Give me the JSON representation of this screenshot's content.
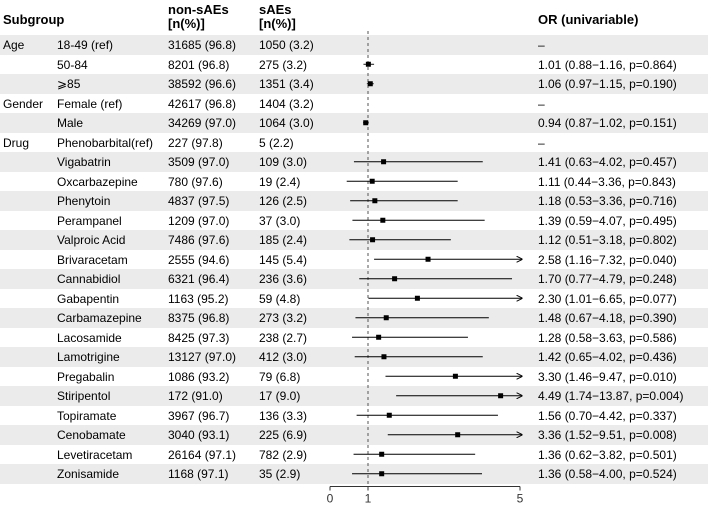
{
  "headers": {
    "subgroup": "Subgroup",
    "non_saes": "non-sAEs",
    "non_saes_unit": "[n(%)]",
    "saes": "sAEs",
    "saes_unit": "[n(%)]",
    "or": "OR (univariable)"
  },
  "rows": [
    {
      "group": "Age",
      "subgroup": "18-49 (ref)",
      "non_saes": "31685 (96.8)",
      "saes": "1050 (3.2)",
      "or_text": "–"
    },
    {
      "group": "",
      "subgroup": "50-84",
      "non_saes": "8201 (96.8)",
      "saes": "275 (3.2)",
      "or_text": "1.01 (0.88−1.16, p=0.864)"
    },
    {
      "group": "",
      "subgroup": "⩾85",
      "non_saes": "38592 (96.6)",
      "saes": "1351 (3.4)",
      "or_text": "1.06 (0.97−1.15, p=0.190)"
    },
    {
      "group": "Gender",
      "subgroup": "Female (ref)",
      "non_saes": "42617 (96.8)",
      "saes": "1404 (3.2)",
      "or_text": "–"
    },
    {
      "group": "",
      "subgroup": "Male",
      "non_saes": "34269 (97.0)",
      "saes": "1064 (3.0)",
      "or_text": "0.94 (0.87−1.02, p=0.151)"
    },
    {
      "group": "Drug",
      "subgroup": "Phenobarbital(ref)",
      "non_saes": "227 (97.8)",
      "saes": "5 (2.2)",
      "or_text": "–"
    },
    {
      "group": "",
      "subgroup": "Vigabatrin",
      "non_saes": "3509 (97.0)",
      "saes": "109 (3.0)",
      "or_text": "1.41 (0.63−4.02, p=0.457)"
    },
    {
      "group": "",
      "subgroup": "Oxcarbazepine",
      "non_saes": "780 (97.6)",
      "saes": "19 (2.4)",
      "or_text": "1.11 (0.44−3.36, p=0.843)"
    },
    {
      "group": "",
      "subgroup": "Phenytoin",
      "non_saes": "4837 (97.5)",
      "saes": "126 (2.5)",
      "or_text": "1.18 (0.53−3.36, p=0.716)"
    },
    {
      "group": "",
      "subgroup": "Perampanel",
      "non_saes": "1209 (97.0)",
      "saes": "37 (3.0)",
      "or_text": "1.39 (0.59−4.07, p=0.495)"
    },
    {
      "group": "",
      "subgroup": "Valproic Acid",
      "non_saes": "7486 (97.6)",
      "saes": "185 (2.4)",
      "or_text": "1.12 (0.51−3.18, p=0.802)"
    },
    {
      "group": "",
      "subgroup": "Brivaracetam",
      "non_saes": "2555 (94.6)",
      "saes": "145 (5.4)",
      "or_text": "2.58 (1.16−7.32, p=0.040)"
    },
    {
      "group": "",
      "subgroup": "Cannabidiol",
      "non_saes": "6321 (96.4)",
      "saes": "236 (3.6)",
      "or_text": "1.70 (0.77−4.79, p=0.248)"
    },
    {
      "group": "",
      "subgroup": "Gabapentin",
      "non_saes": "1163 (95.2)",
      "saes": "59 (4.8)",
      "or_text": "2.30 (1.01−6.65, p=0.077)"
    },
    {
      "group": "",
      "subgroup": "Carbamazepine",
      "non_saes": "8375 (96.8)",
      "saes": "273 (3.2)",
      "or_text": "1.48 (0.67−4.18, p=0.390)"
    },
    {
      "group": "",
      "subgroup": "Lacosamide",
      "non_saes": "8425 (97.3)",
      "saes": "238 (2.7)",
      "or_text": "1.28 (0.58−3.63, p=0.586)"
    },
    {
      "group": "",
      "subgroup": "Lamotrigine",
      "non_saes": "13127 (97.0)",
      "saes": "412 (3.0)",
      "or_text": "1.42 (0.65−4.02, p=0.436)"
    },
    {
      "group": "",
      "subgroup": "Pregabalin",
      "non_saes": "1086 (93.2)",
      "saes": "79 (6.8)",
      "or_text": "3.30 (1.46−9.47, p=0.010)"
    },
    {
      "group": "",
      "subgroup": "Stiripentol",
      "non_saes": "172 (91.0)",
      "saes": "17 (9.0)",
      "or_text": "4.49 (1.74−13.87, p=0.004)"
    },
    {
      "group": "",
      "subgroup": "Topiramate",
      "non_saes": "3967 (96.7)",
      "saes": "136 (3.3)",
      "or_text": "1.56 (0.70−4.42, p=0.337)"
    },
    {
      "group": "",
      "subgroup": "Cenobamate",
      "non_saes": "3040 (93.1)",
      "saes": "225 (6.9)",
      "or_text": "3.36 (1.52−9.51, p=0.008)"
    },
    {
      "group": "",
      "subgroup": "Levetiracetam",
      "non_saes": "26164 (97.1)",
      "saes": "782 (2.9)",
      "or_text": "1.36 (0.62−3.82, p=0.501)"
    },
    {
      "group": "",
      "subgroup": "Zonisamide",
      "non_saes": "1168 (97.1)",
      "saes": "35 (2.9)",
      "or_text": "1.36 (0.58−4.00, p=0.524)"
    }
  ],
  "chart_data": {
    "type": "forest",
    "x_ticks": [
      0,
      1,
      5
    ],
    "xlim": [
      0,
      5
    ],
    "reference_line": 1,
    "estimates": [
      null,
      1.01,
      1.06,
      null,
      0.94,
      null,
      1.41,
      1.11,
      1.18,
      1.39,
      1.12,
      2.58,
      1.7,
      2.3,
      1.48,
      1.28,
      1.42,
      3.3,
      4.49,
      1.56,
      3.36,
      1.36,
      1.36
    ],
    "ci_low": [
      null,
      0.88,
      0.97,
      null,
      0.87,
      null,
      0.63,
      0.44,
      0.53,
      0.59,
      0.51,
      1.16,
      0.77,
      1.01,
      0.67,
      0.58,
      0.65,
      1.46,
      1.74,
      0.7,
      1.52,
      0.62,
      0.58
    ],
    "ci_high": [
      null,
      1.16,
      1.15,
      null,
      1.02,
      null,
      4.02,
      3.36,
      3.36,
      4.07,
      3.18,
      7.32,
      4.79,
      6.65,
      4.18,
      3.63,
      4.02,
      9.47,
      13.87,
      4.42,
      9.51,
      3.82,
      4.0
    ],
    "colors": {
      "shade": "#ebebeb",
      "line": "#000000",
      "ref_line": "#555555"
    }
  }
}
